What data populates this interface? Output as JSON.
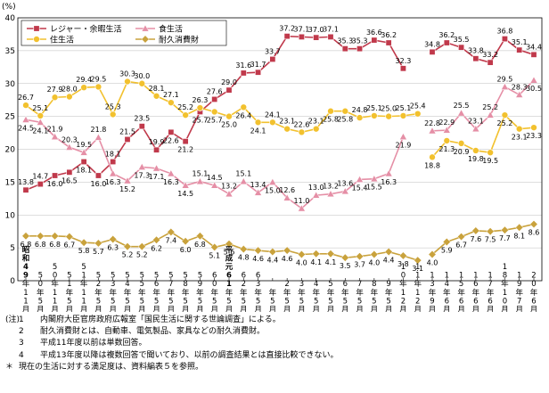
{
  "chart_data": {
    "type": "line",
    "yunit": "(%)",
    "ylim": [
      0,
      40
    ],
    "yticks": [
      0,
      5,
      10,
      15,
      20,
      25,
      30,
      35,
      40
    ],
    "grid": true,
    "legend_position": "top-left",
    "era_labels": [
      {
        "text": "昭和",
        "index": 0
      },
      {
        "text": "平成元",
        "index": 14
      }
    ],
    "categories": [
      {
        "year": "49",
        "month": "11"
      },
      {
        "year": "50",
        "month": "5"
      },
      {
        "year": "50",
        "month": "11"
      },
      {
        "year": "51",
        "month": "5"
      },
      {
        "year": "51",
        "month": "11"
      },
      {
        "year": "52",
        "month": "5"
      },
      {
        "year": "53",
        "month": "5"
      },
      {
        "year": "54",
        "month": "5"
      },
      {
        "year": "55",
        "month": "5"
      },
      {
        "year": "56",
        "month": "5"
      },
      {
        "year": "57",
        "month": "5"
      },
      {
        "year": "58",
        "month": "5"
      },
      {
        "year": "59",
        "month": "5"
      },
      {
        "year": "60",
        "month": "5"
      },
      {
        "year": "61",
        "month": "5"
      },
      {
        "year": "62",
        "month": "5"
      },
      {
        "year": "63",
        "month": "5"
      },
      {
        "year": "",
        "month": "5"
      },
      {
        "year": "2",
        "month": "5"
      },
      {
        "year": "3",
        "month": "5"
      },
      {
        "year": "4",
        "month": "5"
      },
      {
        "year": "5",
        "month": "5"
      },
      {
        "year": "6",
        "month": "5"
      },
      {
        "year": "7",
        "month": "5"
      },
      {
        "year": "8",
        "month": "5"
      },
      {
        "year": "9",
        "month": "5"
      },
      {
        "year": "10",
        "month": "12"
      },
      {
        "year": "11",
        "month": "12"
      },
      {
        "year": "13",
        "month": "9"
      },
      {
        "year": "14",
        "month": "6"
      },
      {
        "year": "15",
        "month": "6"
      },
      {
        "year": "16",
        "month": "6"
      },
      {
        "year": "17",
        "month": "6"
      },
      {
        "year": "18",
        "month": "10"
      },
      {
        "year": "19",
        "month": "7"
      },
      {
        "year": "20",
        "month": "6"
      }
    ],
    "year_unit": "年",
    "month_unit": "月",
    "break_after_index": 27,
    "series": [
      {
        "name": "レジャー・余暇生活",
        "color": "#c0394b",
        "marker": "square",
        "values": [
          13.8,
          14.7,
          16.0,
          16.5,
          18.1,
          16.0,
          18.1,
          21.5,
          23.5,
          19.9,
          22.6,
          21.2,
          25.7,
          27.6,
          29.0,
          31.6,
          31.7,
          33.7,
          37.2,
          37.1,
          37.0,
          37.1,
          35.3,
          35.3,
          36.6,
          36.2,
          32.3,
          null,
          34.8,
          36.2,
          35.5,
          33.8,
          33.2,
          36.8,
          35.1,
          34.4
        ]
      },
      {
        "name": "食生活",
        "color": "#e58fa6",
        "marker": "triangle",
        "values": [
          24.5,
          24.1,
          21.9,
          20.3,
          19.5,
          21.8,
          16.3,
          15.2,
          17.3,
          17.1,
          16.3,
          14.5,
          15.1,
          14.5,
          13.2,
          15.1,
          13.4,
          15.0,
          12.6,
          11.0,
          13.0,
          13.2,
          13.6,
          15.4,
          15.5,
          16.3,
          21.9,
          null,
          22.8,
          22.9,
          25.5,
          23.1,
          25.2,
          29.5,
          28.3,
          30.5
        ]
      },
      {
        "name": "住生活",
        "color": "#f2c12e",
        "marker": "circle",
        "values": [
          26.7,
          25.1,
          27.9,
          28.0,
          29.4,
          29.5,
          25.3,
          30.3,
          30.0,
          28.1,
          27.1,
          25.2,
          26.3,
          25.7,
          25.0,
          26.4,
          24.1,
          24.1,
          23.1,
          22.6,
          23.1,
          25.8,
          25.8,
          24.8,
          25.1,
          25.0,
          25.1,
          25.4,
          18.8,
          21.3,
          20.9,
          19.8,
          19.5,
          25.2,
          23.1,
          23.3
        ]
      },
      {
        "name": "耐久消費財",
        "color": "#c9a23c",
        "marker": "diamond",
        "values": [
          6.8,
          6.8,
          6.8,
          6.7,
          5.8,
          5.7,
          6.3,
          5.2,
          5.2,
          6.2,
          7.4,
          6.0,
          6.8,
          5.1,
          5.6,
          4.8,
          4.6,
          4.4,
          4.6,
          4.0,
          4.1,
          4.1,
          3.5,
          3.7,
          4.0,
          4.4,
          3.8,
          3.1,
          4.0,
          5.9,
          6.7,
          7.6,
          7.5,
          7.7,
          8.1,
          8.6
        ]
      }
    ]
  },
  "notes": [
    {
      "prefix": "(注)",
      "num": "1",
      "text": "内閣府大臣官房政府広報室「国民生活に関する世論調査」による。"
    },
    {
      "prefix": "",
      "num": "2",
      "text": "耐久消費財とは、自動車、電気製品、家具などの耐久消費財。"
    },
    {
      "prefix": "",
      "num": "3",
      "text": "平成11年度以前は単数回答。"
    },
    {
      "prefix": "",
      "num": "4",
      "text": "平成13年度以降は複数回答で聞いており、以前の調査結果とは直接比較できない。"
    },
    {
      "prefix": "＊",
      "num": "",
      "text": "現在の生活に対する満足度は、資料編表５を参照。"
    }
  ]
}
